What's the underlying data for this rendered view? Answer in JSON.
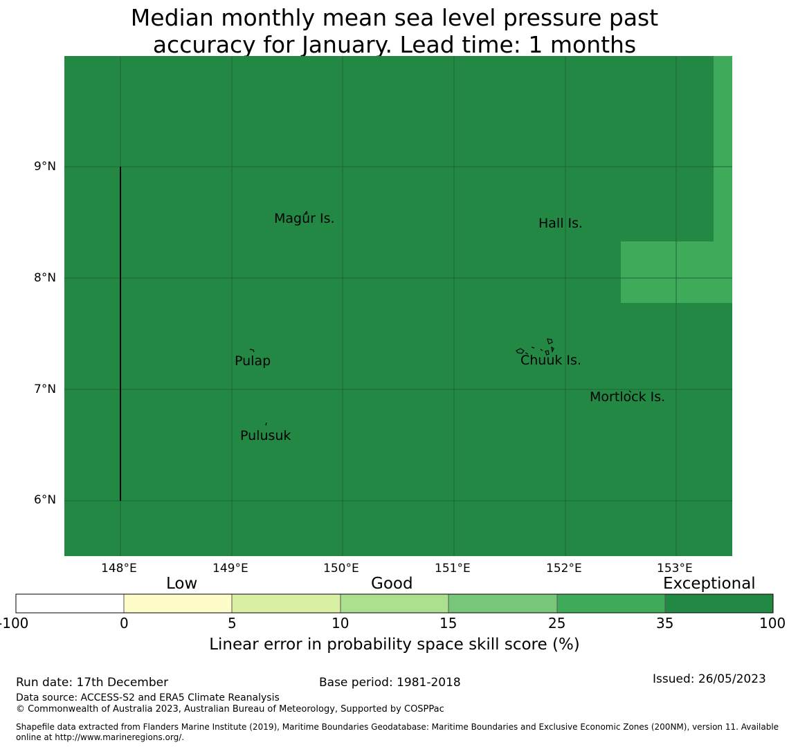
{
  "title_line1": "Median monthly mean sea level pressure past",
  "title_line2": "accuracy for January. Lead time: 1 months",
  "colors": {
    "map_base": "#248845",
    "map_highlight": "#3fab5a",
    "grid": "#1a6633",
    "bins": [
      "#ffffff",
      "#fefdc9",
      "#d9efa1",
      "#acdf8e",
      "#78c679",
      "#3fab5a",
      "#248845"
    ]
  },
  "lat_labels": [
    "9°N",
    "8°N",
    "7°N",
    "6°N"
  ],
  "lon_labels": [
    "148°E",
    "149°E",
    "150°E",
    "151°E",
    "152°E",
    "153°E"
  ],
  "islands": {
    "magur": "Magur Is.",
    "hall": "Hall Is.",
    "pulap": "Pulap",
    "chuuk": "Chuuk Is.",
    "mortlock": "Mortlock Is.",
    "pulusuk": "Pulusuk"
  },
  "colorbar": {
    "categories": [
      "Low",
      "Good",
      "Exceptional"
    ],
    "ticks": [
      "-100",
      "0",
      "5",
      "10",
      "15",
      "25",
      "35",
      "100"
    ],
    "title": "Linear error in probability space skill score (%)"
  },
  "footer": {
    "run_date": "Run date: 17th December",
    "base_period": "Base period: 1981-2018",
    "issued": "Issued: 26/05/2023",
    "data_source": "Data source: ACCESS-S2 and ERA5 Climate Reanalysis",
    "copyright": "© Commonwealth of Australia 2023, Australian Bureau of Meteorology, Supported by COSPPac",
    "shapefile_line1": "Shapefile data extracted from Flanders Marine Institute (2019), Maritime Boundaries Geodatabase: Maritime Boundaries and Exclusive Economic Zones (200NM), version 11. Available",
    "shapefile_line2": "online at http://www.marineregions.org/."
  }
}
